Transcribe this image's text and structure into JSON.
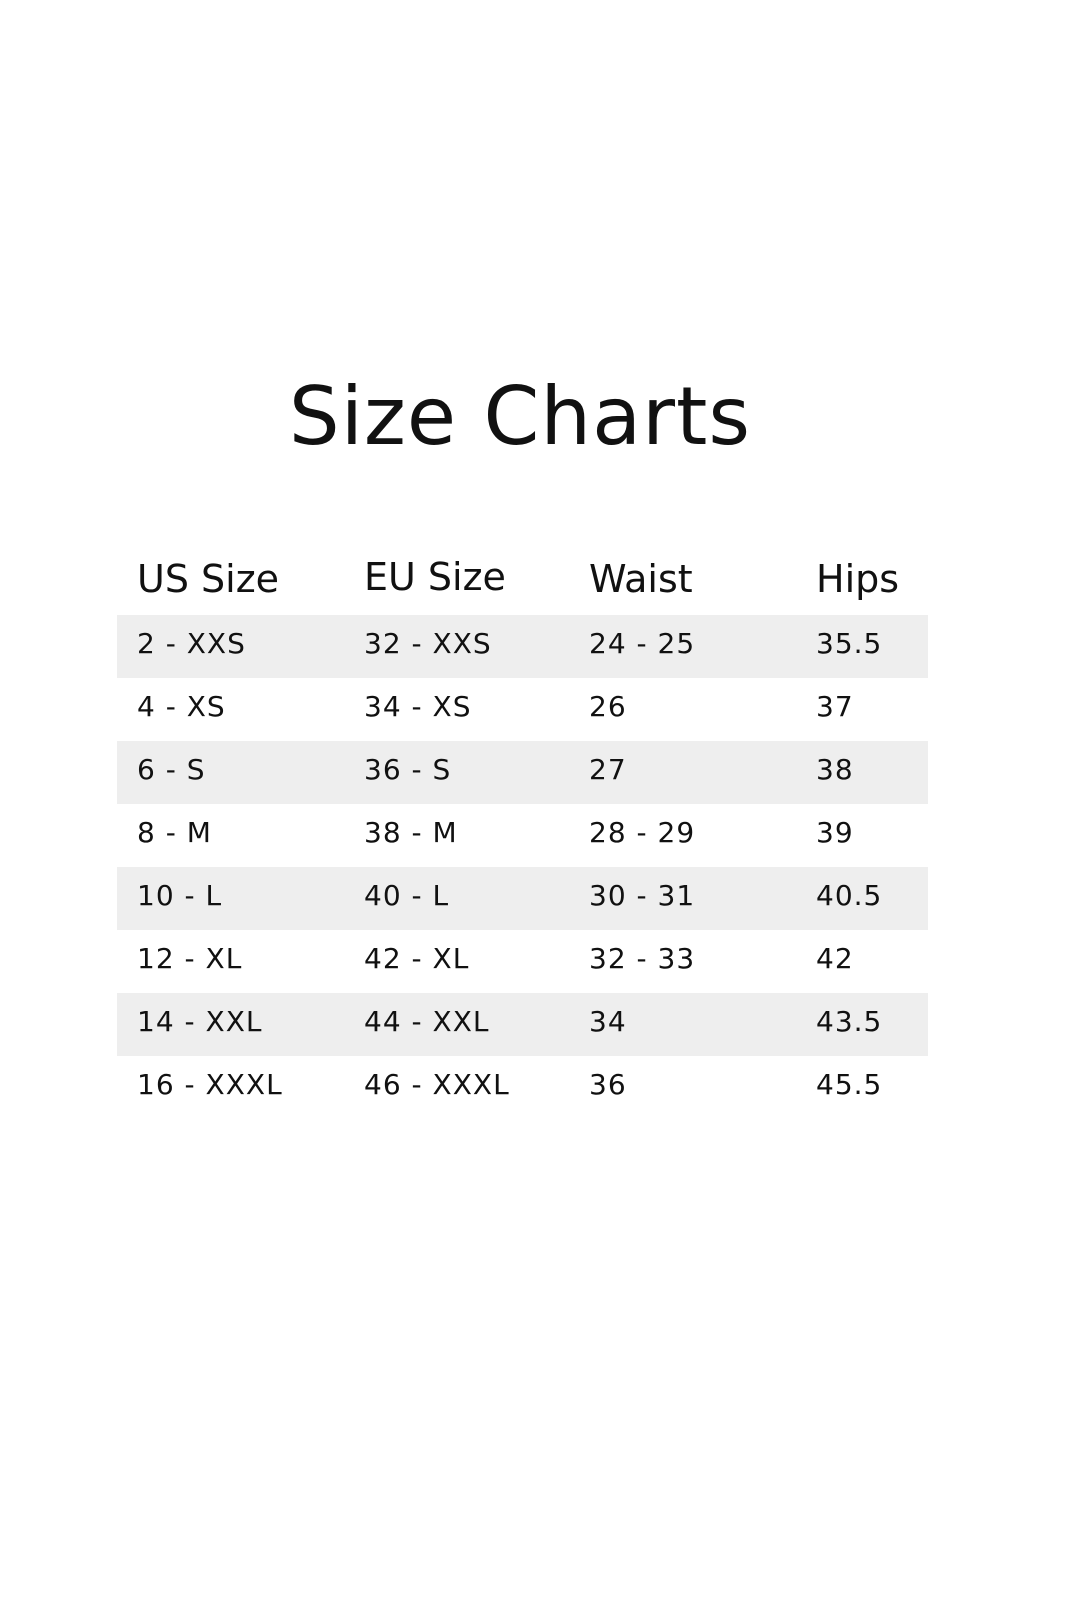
{
  "title": "Size Charts",
  "table": {
    "headers": [
      "US Size",
      "EU Size",
      "Waist",
      "Hips"
    ],
    "rows": [
      [
        "2 - XXS",
        "32 - XXS",
        "24 - 25",
        "35.5"
      ],
      [
        "4 - XS",
        "34 - XS",
        "26",
        "37"
      ],
      [
        "6 - S",
        "36 - S",
        "27",
        "38"
      ],
      [
        "8 - M",
        "38 - M",
        "28 - 29",
        "39"
      ],
      [
        "10 - L",
        "40 - L",
        "30 - 31",
        "40.5"
      ],
      [
        "12 - XL",
        "42 - XL",
        "32 - 33",
        "42"
      ],
      [
        "14 - XXL",
        "44 - XXL",
        "34",
        "43.5"
      ],
      [
        "16 - XXXL",
        "46 - XXXL",
        "36",
        "45.5"
      ]
    ],
    "stripe_color": "#eeeeee"
  }
}
